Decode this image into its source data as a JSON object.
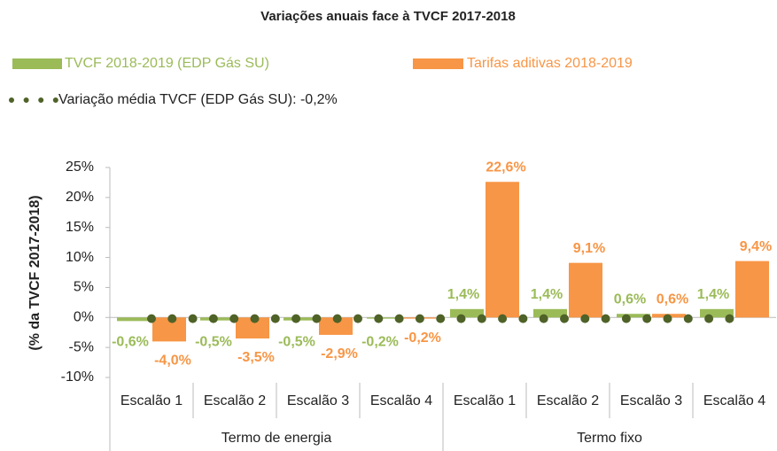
{
  "chart_data": {
    "type": "bar",
    "title": "Variações anuais face à TVCF 2017-2018",
    "y_label": "(% da TVCF 2017-2018)",
    "categories": [
      "Escalão 1",
      "Escalão 2",
      "Escalão 3",
      "Escalão 4",
      "Escalão 1",
      "Escalão 2",
      "Escalão 3",
      "Escalão 4"
    ],
    "groups": [
      {
        "name": "Termo de energia",
        "size": 4
      },
      {
        "name": "Termo fixo",
        "size": 4
      }
    ],
    "series": [
      {
        "name": "TVCF 2018-2019 (EDP Gás SU)",
        "color": "#9bbb59",
        "values": [
          -0.6,
          -0.5,
          -0.5,
          -0.2,
          1.4,
          1.4,
          0.6,
          1.4
        ],
        "value_labels": [
          "-0,6%",
          "-0,5%",
          "-0,5%",
          "-0,2%",
          "1,4%",
          "1,4%",
          "0,6%",
          "1,4%"
        ]
      },
      {
        "name": "Tarifas aditivas 2018-2019",
        "color": "#f79646",
        "values": [
          -4.0,
          -3.5,
          -2.9,
          -0.2,
          22.6,
          9.1,
          0.6,
          9.4
        ],
        "value_labels": [
          "-4,0%",
          "-3,5%",
          "-2,9%",
          "-0,2%",
          "22,6%",
          "9,1%",
          "0,6%",
          "9,4%"
        ]
      },
      {
        "name": "Variação média TVCF (EDP Gás SU): -0,2%",
        "type": "line",
        "color": "#4f6228",
        "values": [
          -0.2,
          -0.2,
          -0.2,
          -0.2,
          -0.2,
          -0.2,
          -0.2,
          -0.2
        ]
      }
    ],
    "ylim": [
      -10,
      25
    ],
    "yticks": [
      {
        "value": -10,
        "label": "-10%"
      },
      {
        "value": -5,
        "label": "-5%"
      },
      {
        "value": 0,
        "label": "0%"
      },
      {
        "value": 5,
        "label": "5%"
      },
      {
        "value": 10,
        "label": "10%"
      },
      {
        "value": 15,
        "label": "15%"
      },
      {
        "value": 20,
        "label": "20%"
      },
      {
        "value": 25,
        "label": "25%"
      }
    ],
    "grid": false
  }
}
